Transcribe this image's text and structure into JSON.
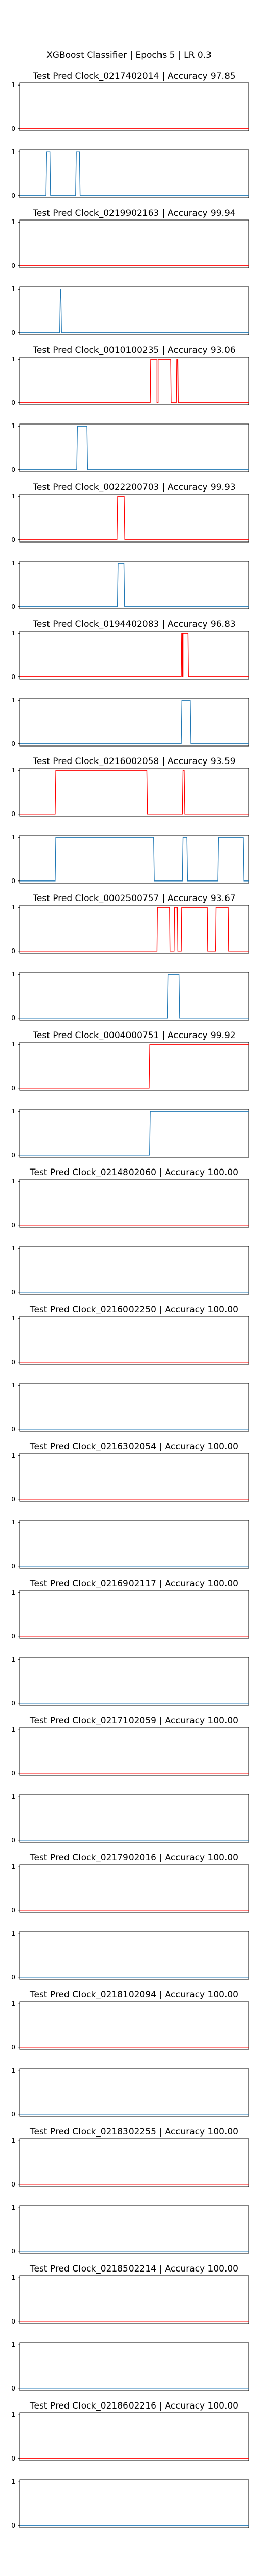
{
  "figure": {
    "title": "XGBoost Classifier | Epochs 5 | LR 0.3"
  },
  "colors": {
    "pred": "#ff0000",
    "truth": "#1f77b4",
    "axes": "#000000",
    "background": "#ffffff"
  },
  "chart_data": {
    "type": "line",
    "x_range": [
      0,
      1
    ],
    "ylim": [
      0,
      1
    ],
    "yticks": [
      "0",
      "1"
    ],
    "grid": false,
    "legend": "none",
    "panels": [
      {
        "title": "Test Pred Clock_0217402014 | Accuracy 97.85",
        "pred": [
          [
            0,
            0
          ],
          [
            1,
            0
          ]
        ],
        "truth": [
          [
            0,
            0
          ],
          [
            0.115,
            0
          ],
          [
            0.118,
            1
          ],
          [
            0.132,
            1
          ],
          [
            0.135,
            0
          ],
          [
            0.245,
            0
          ],
          [
            0.248,
            1
          ],
          [
            0.262,
            1
          ],
          [
            0.265,
            0
          ],
          [
            1,
            0
          ]
        ]
      },
      {
        "title": "Test Pred Clock_0219902163 | Accuracy 99.94",
        "pred": [
          [
            0,
            0
          ],
          [
            1,
            0
          ]
        ],
        "truth": [
          [
            0,
            0
          ],
          [
            0.175,
            0
          ],
          [
            0.178,
            1
          ],
          [
            0.18,
            1
          ],
          [
            0.183,
            0
          ],
          [
            1,
            0
          ]
        ]
      },
      {
        "title": "Test Pred Clock_0010100235 | Accuracy 93.06",
        "pred": [
          [
            0,
            0
          ],
          [
            0.57,
            0
          ],
          [
            0.572,
            1
          ],
          [
            0.6,
            1
          ],
          [
            0.6,
            0
          ],
          [
            0.605,
            0
          ],
          [
            0.605,
            1
          ],
          [
            0.66,
            1
          ],
          [
            0.662,
            0
          ],
          [
            0.685,
            0
          ],
          [
            0.687,
            1
          ],
          [
            0.69,
            1
          ],
          [
            0.692,
            0
          ],
          [
            1,
            0
          ]
        ],
        "truth": [
          [
            0,
            0
          ],
          [
            0.25,
            0
          ],
          [
            0.253,
            1
          ],
          [
            0.293,
            1
          ],
          [
            0.296,
            0
          ],
          [
            1,
            0
          ]
        ]
      },
      {
        "title": "Test Pred Clock_0022200703 | Accuracy 99.93",
        "pred": [
          [
            0,
            0
          ],
          [
            0.425,
            0
          ],
          [
            0.428,
            1
          ],
          [
            0.457,
            1
          ],
          [
            0.46,
            0
          ],
          [
            1,
            0
          ]
        ],
        "truth": [
          [
            0,
            0
          ],
          [
            0.427,
            0
          ],
          [
            0.43,
            1
          ],
          [
            0.456,
            1
          ],
          [
            0.459,
            0
          ],
          [
            1,
            0
          ]
        ]
      },
      {
        "title": "Test Pred Clock_0194402083 | Accuracy 96.83",
        "pred": [
          [
            0,
            0
          ],
          [
            0.705,
            0
          ],
          [
            0.707,
            1
          ],
          [
            0.71,
            1
          ],
          [
            0.71,
            0
          ],
          [
            0.713,
            0
          ],
          [
            0.713,
            1
          ],
          [
            0.735,
            1
          ],
          [
            0.737,
            0
          ],
          [
            1,
            0
          ]
        ],
        "truth": [
          [
            0,
            0
          ],
          [
            0.705,
            0
          ],
          [
            0.708,
            1
          ],
          [
            0.745,
            1
          ],
          [
            0.748,
            0
          ],
          [
            1,
            0
          ]
        ]
      },
      {
        "title": "Test Pred Clock_0216002058 | Accuracy 93.59",
        "pred": [
          [
            0,
            0
          ],
          [
            0.155,
            0
          ],
          [
            0.158,
            1
          ],
          [
            0.555,
            1
          ],
          [
            0.558,
            0
          ],
          [
            0.71,
            0
          ],
          [
            0.713,
            1
          ],
          [
            0.718,
            1
          ],
          [
            0.721,
            0
          ],
          [
            1,
            0
          ]
        ],
        "truth": [
          [
            0,
            0
          ],
          [
            0.155,
            0
          ],
          [
            0.158,
            1
          ],
          [
            0.585,
            1
          ],
          [
            0.588,
            0
          ],
          [
            0.71,
            0
          ],
          [
            0.713,
            1
          ],
          [
            0.73,
            1
          ],
          [
            0.733,
            0
          ],
          [
            0.865,
            0
          ],
          [
            0.868,
            1
          ],
          [
            0.975,
            1
          ],
          [
            0.978,
            0
          ],
          [
            1,
            0
          ]
        ]
      },
      {
        "title": "Test Pred Clock_0002500757 | Accuracy 93.67",
        "pred": [
          [
            0,
            0
          ],
          [
            0.6,
            0
          ],
          [
            0.602,
            1
          ],
          [
            0.655,
            1
          ],
          [
            0.657,
            0
          ],
          [
            0.675,
            0
          ],
          [
            0.677,
            1
          ],
          [
            0.688,
            1
          ],
          [
            0.69,
            0
          ],
          [
            0.705,
            0
          ],
          [
            0.707,
            1
          ],
          [
            0.82,
            1
          ],
          [
            0.822,
            0
          ],
          [
            0.855,
            0
          ],
          [
            0.857,
            1
          ],
          [
            0.91,
            1
          ],
          [
            0.912,
            0
          ],
          [
            1,
            0
          ]
        ],
        "truth": [
          [
            0,
            0
          ],
          [
            0.645,
            0
          ],
          [
            0.648,
            1
          ],
          [
            0.695,
            1
          ],
          [
            0.698,
            0
          ],
          [
            1,
            0
          ]
        ]
      },
      {
        "title": "Test Pred Clock_0004000751 | Accuracy 99.92",
        "pred": [
          [
            0,
            0
          ],
          [
            0.565,
            0
          ],
          [
            0.568,
            1
          ],
          [
            1,
            1
          ]
        ],
        "truth": [
          [
            0,
            0
          ],
          [
            0.567,
            0
          ],
          [
            0.57,
            1
          ],
          [
            1,
            1
          ]
        ]
      },
      {
        "title": "Test Pred Clock_0214802060 | Accuracy 100.00",
        "pred": [
          [
            0,
            0
          ],
          [
            1,
            0
          ]
        ],
        "truth": [
          [
            0,
            0
          ],
          [
            1,
            0
          ]
        ]
      },
      {
        "title": "Test Pred Clock_0216002250 | Accuracy 100.00",
        "pred": [
          [
            0,
            0
          ],
          [
            1,
            0
          ]
        ],
        "truth": [
          [
            0,
            0
          ],
          [
            1,
            0
          ]
        ]
      },
      {
        "title": "Test Pred Clock_0216302054 | Accuracy 100.00",
        "pred": [
          [
            0,
            0
          ],
          [
            1,
            0
          ]
        ],
        "truth": [
          [
            0,
            0
          ],
          [
            1,
            0
          ]
        ]
      },
      {
        "title": "Test Pred Clock_0216902117 | Accuracy 100.00",
        "pred": [
          [
            0,
            0
          ],
          [
            1,
            0
          ]
        ],
        "truth": [
          [
            0,
            0
          ],
          [
            1,
            0
          ]
        ]
      },
      {
        "title": "Test Pred Clock_0217102059 | Accuracy 100.00",
        "pred": [
          [
            0,
            0
          ],
          [
            1,
            0
          ]
        ],
        "truth": [
          [
            0,
            0
          ],
          [
            1,
            0
          ]
        ]
      },
      {
        "title": "Test Pred Clock_0217902016 | Accuracy 100.00",
        "pred": [
          [
            0,
            0
          ],
          [
            1,
            0
          ]
        ],
        "truth": [
          [
            0,
            0
          ],
          [
            1,
            0
          ]
        ]
      },
      {
        "title": "Test Pred Clock_0218102094 | Accuracy 100.00",
        "pred": [
          [
            0,
            0
          ],
          [
            1,
            0
          ]
        ],
        "truth": [
          [
            0,
            0
          ],
          [
            1,
            0
          ]
        ]
      },
      {
        "title": "Test Pred Clock_0218302255 | Accuracy 100.00",
        "pred": [
          [
            0,
            0
          ],
          [
            1,
            0
          ]
        ],
        "truth": [
          [
            0,
            0
          ],
          [
            1,
            0
          ]
        ]
      },
      {
        "title": "Test Pred Clock_0218502214 | Accuracy 100.00",
        "pred": [
          [
            0,
            0
          ],
          [
            1,
            0
          ]
        ],
        "truth": [
          [
            0,
            0
          ],
          [
            1,
            0
          ]
        ]
      },
      {
        "title": "Test Pred Clock_0218602216 | Accuracy 100.00",
        "pred": [
          [
            0,
            0
          ],
          [
            1,
            0
          ]
        ],
        "truth": [
          [
            0,
            0
          ],
          [
            1,
            0
          ]
        ]
      }
    ]
  }
}
